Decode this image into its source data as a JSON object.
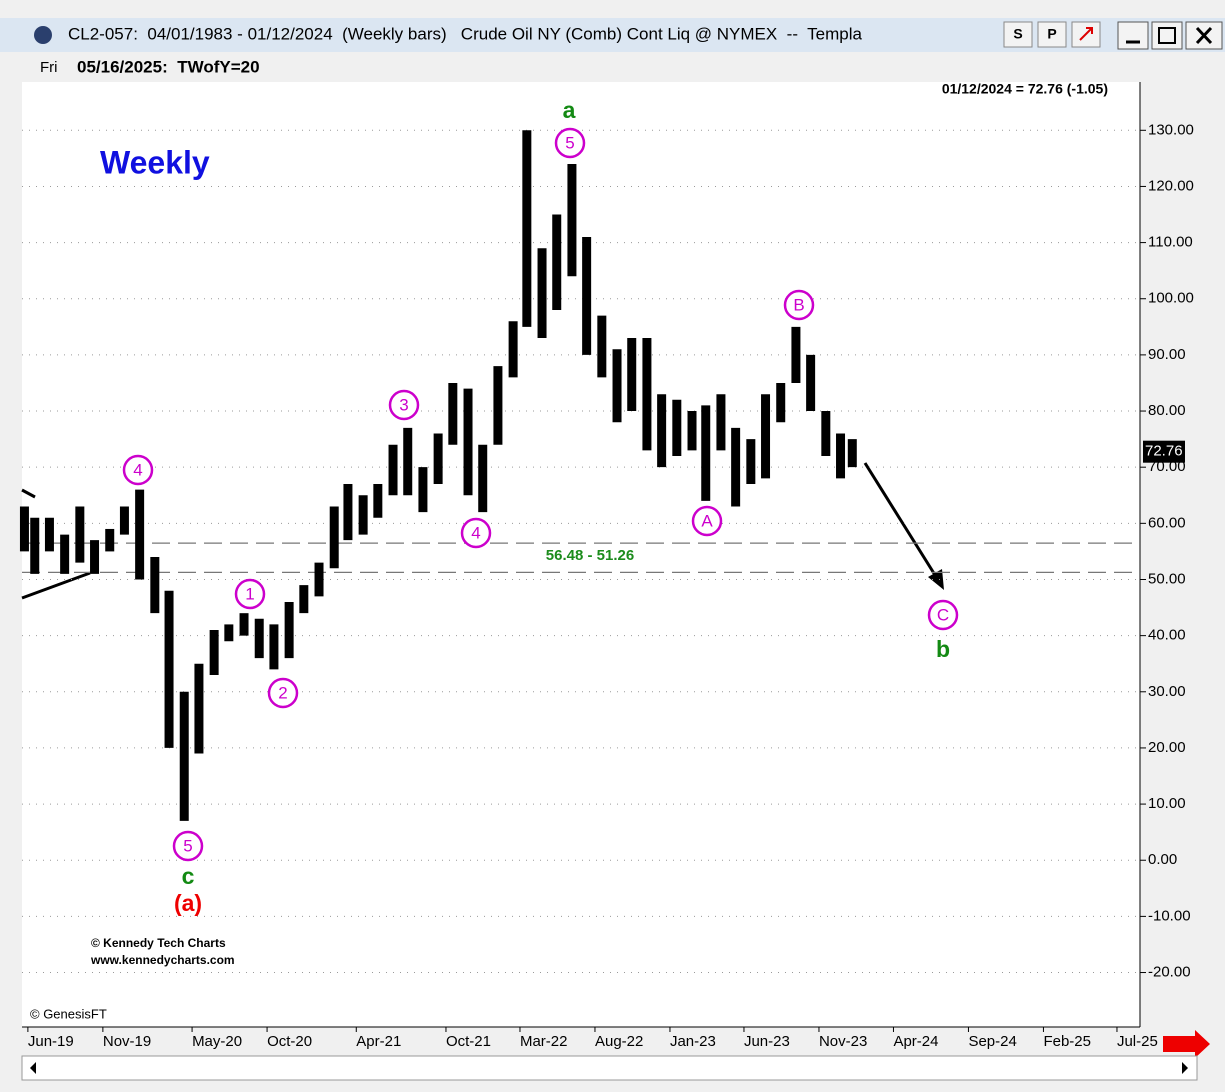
{
  "window": {
    "title": "CL2-057:  04/01/1983 - 01/12/2024  (Weekly bars)   Crude Oil NY (Comb) Cont Liq @ NYMEX  --  Templa",
    "buttons": [
      "S",
      "P"
    ],
    "day": "Fri",
    "date_line": "05/16/2025:  TWofY=20"
  },
  "chart_data": {
    "type": "range_bar",
    "color": "#000000",
    "grid": true,
    "header": "01/12/2024 = 72.76 (-1.05)",
    "last_price": 72.76,
    "last_price_label": "72.76",
    "x": [
      "2019-05-25",
      "2019-06-15",
      "2019-07-15",
      "2019-08-15",
      "2019-09-15",
      "2019-10-15",
      "2019-11-15",
      "2019-12-15",
      "2020-01-15",
      "2020-02-15",
      "2020-03-15",
      "2020-04-15",
      "2020-05-15",
      "2020-06-15",
      "2020-07-15",
      "2020-08-15",
      "2020-09-15",
      "2020-10-15",
      "2020-11-15",
      "2020-12-15",
      "2021-01-15",
      "2021-02-15",
      "2021-03-15",
      "2021-04-15",
      "2021-05-15",
      "2021-06-15",
      "2021-07-15",
      "2021-08-15",
      "2021-09-15",
      "2021-10-15",
      "2021-11-15",
      "2021-12-15",
      "2022-01-15",
      "2022-02-15",
      "2022-03-15",
      "2022-04-15",
      "2022-05-15",
      "2022-06-15",
      "2022-07-15",
      "2022-08-15",
      "2022-09-15",
      "2022-10-15",
      "2022-11-15",
      "2022-12-15",
      "2023-01-15",
      "2023-02-15",
      "2023-03-15",
      "2023-04-15",
      "2023-05-15",
      "2023-06-15",
      "2023-07-15",
      "2023-08-15",
      "2023-09-15",
      "2023-10-15",
      "2023-11-15",
      "2023-12-15",
      "2024-01-08"
    ],
    "high": [
      63,
      61,
      61,
      58,
      63,
      57,
      59,
      63,
      66,
      54,
      48,
      30,
      35,
      41,
      42,
      44,
      43,
      42,
      46,
      49,
      53,
      63,
      67,
      65,
      67,
      74,
      77,
      70,
      76,
      85,
      84,
      74,
      88,
      96,
      130,
      109,
      115,
      124,
      111,
      97,
      91,
      93,
      93,
      83,
      82,
      80,
      81,
      83,
      77,
      75,
      83,
      85,
      95,
      90,
      80,
      76,
      75
    ],
    "low": [
      55,
      51,
      55,
      51,
      53,
      51,
      55,
      58,
      50,
      44,
      20,
      7,
      19,
      33,
      39,
      40,
      36,
      34,
      36,
      44,
      47,
      52,
      57,
      58,
      61,
      65,
      65,
      62,
      67,
      74,
      65,
      62,
      74,
      86,
      95,
      93,
      98,
      104,
      90,
      86,
      78,
      80,
      73,
      70,
      72,
      73,
      64,
      73,
      63,
      67,
      68,
      78,
      85,
      80,
      72,
      68,
      70
    ],
    "xlim": [
      "2019-05-20",
      "2025-08-17"
    ],
    "xticks": [
      {
        "value": "2019-06-01",
        "label": "Jun-19"
      },
      {
        "value": "2019-11-01",
        "label": "Nov-19"
      },
      {
        "value": "2020-05-01",
        "label": "May-20"
      },
      {
        "value": "2020-10-01",
        "label": "Oct-20"
      },
      {
        "value": "2021-04-01",
        "label": "Apr-21"
      },
      {
        "value": "2021-10-01",
        "label": "Oct-21"
      },
      {
        "value": "2022-03-01",
        "label": "Mar-22"
      },
      {
        "value": "2022-08-01",
        "label": "Aug-22"
      },
      {
        "value": "2023-01-01",
        "label": "Jan-23"
      },
      {
        "value": "2023-06-01",
        "label": "Jun-23"
      },
      {
        "value": "2023-11-01",
        "label": "Nov-23"
      },
      {
        "value": "2024-04-01",
        "label": "Apr-24"
      },
      {
        "value": "2024-09-01",
        "label": "Sep-24"
      },
      {
        "value": "2025-02-01",
        "label": "Feb-25"
      },
      {
        "value": "2025-07-01",
        "label": "Jul-25"
      }
    ],
    "ylim": [
      -29.7,
      138.6
    ],
    "yticks": [
      {
        "value": -20,
        "label": "-20.00"
      },
      {
        "value": -10,
        "label": "-10.00"
      },
      {
        "value": 0,
        "label": "0.00"
      },
      {
        "value": 10,
        "label": "10.00"
      },
      {
        "value": 20,
        "label": "20.00"
      },
      {
        "value": 30,
        "label": "30.00"
      },
      {
        "value": 40,
        "label": "40.00"
      },
      {
        "value": 50,
        "label": "50.00"
      },
      {
        "value": 60,
        "label": "60.00"
      },
      {
        "value": 70,
        "label": "70.00"
      },
      {
        "value": 80,
        "label": "80.00"
      },
      {
        "value": 90,
        "label": "90.00"
      },
      {
        "value": 100,
        "label": "100.00"
      },
      {
        "value": 110,
        "label": "110.00"
      },
      {
        "value": 120,
        "label": "120.00"
      },
      {
        "value": 130,
        "label": "130.00"
      }
    ],
    "levels": [
      56.48,
      51.26
    ],
    "levels_label": "56.48 - 51.26",
    "title": "Weekly",
    "wave_labels": [
      "4",
      "1",
      "2",
      "3",
      "4",
      "5",
      "5",
      "A",
      "B",
      "C"
    ],
    "letters": [
      "a",
      "c",
      "(a)",
      "b"
    ],
    "credits": [
      "© Kennedy Tech Charts",
      "www.kennedycharts.com",
      "© GenesisFT"
    ]
  }
}
